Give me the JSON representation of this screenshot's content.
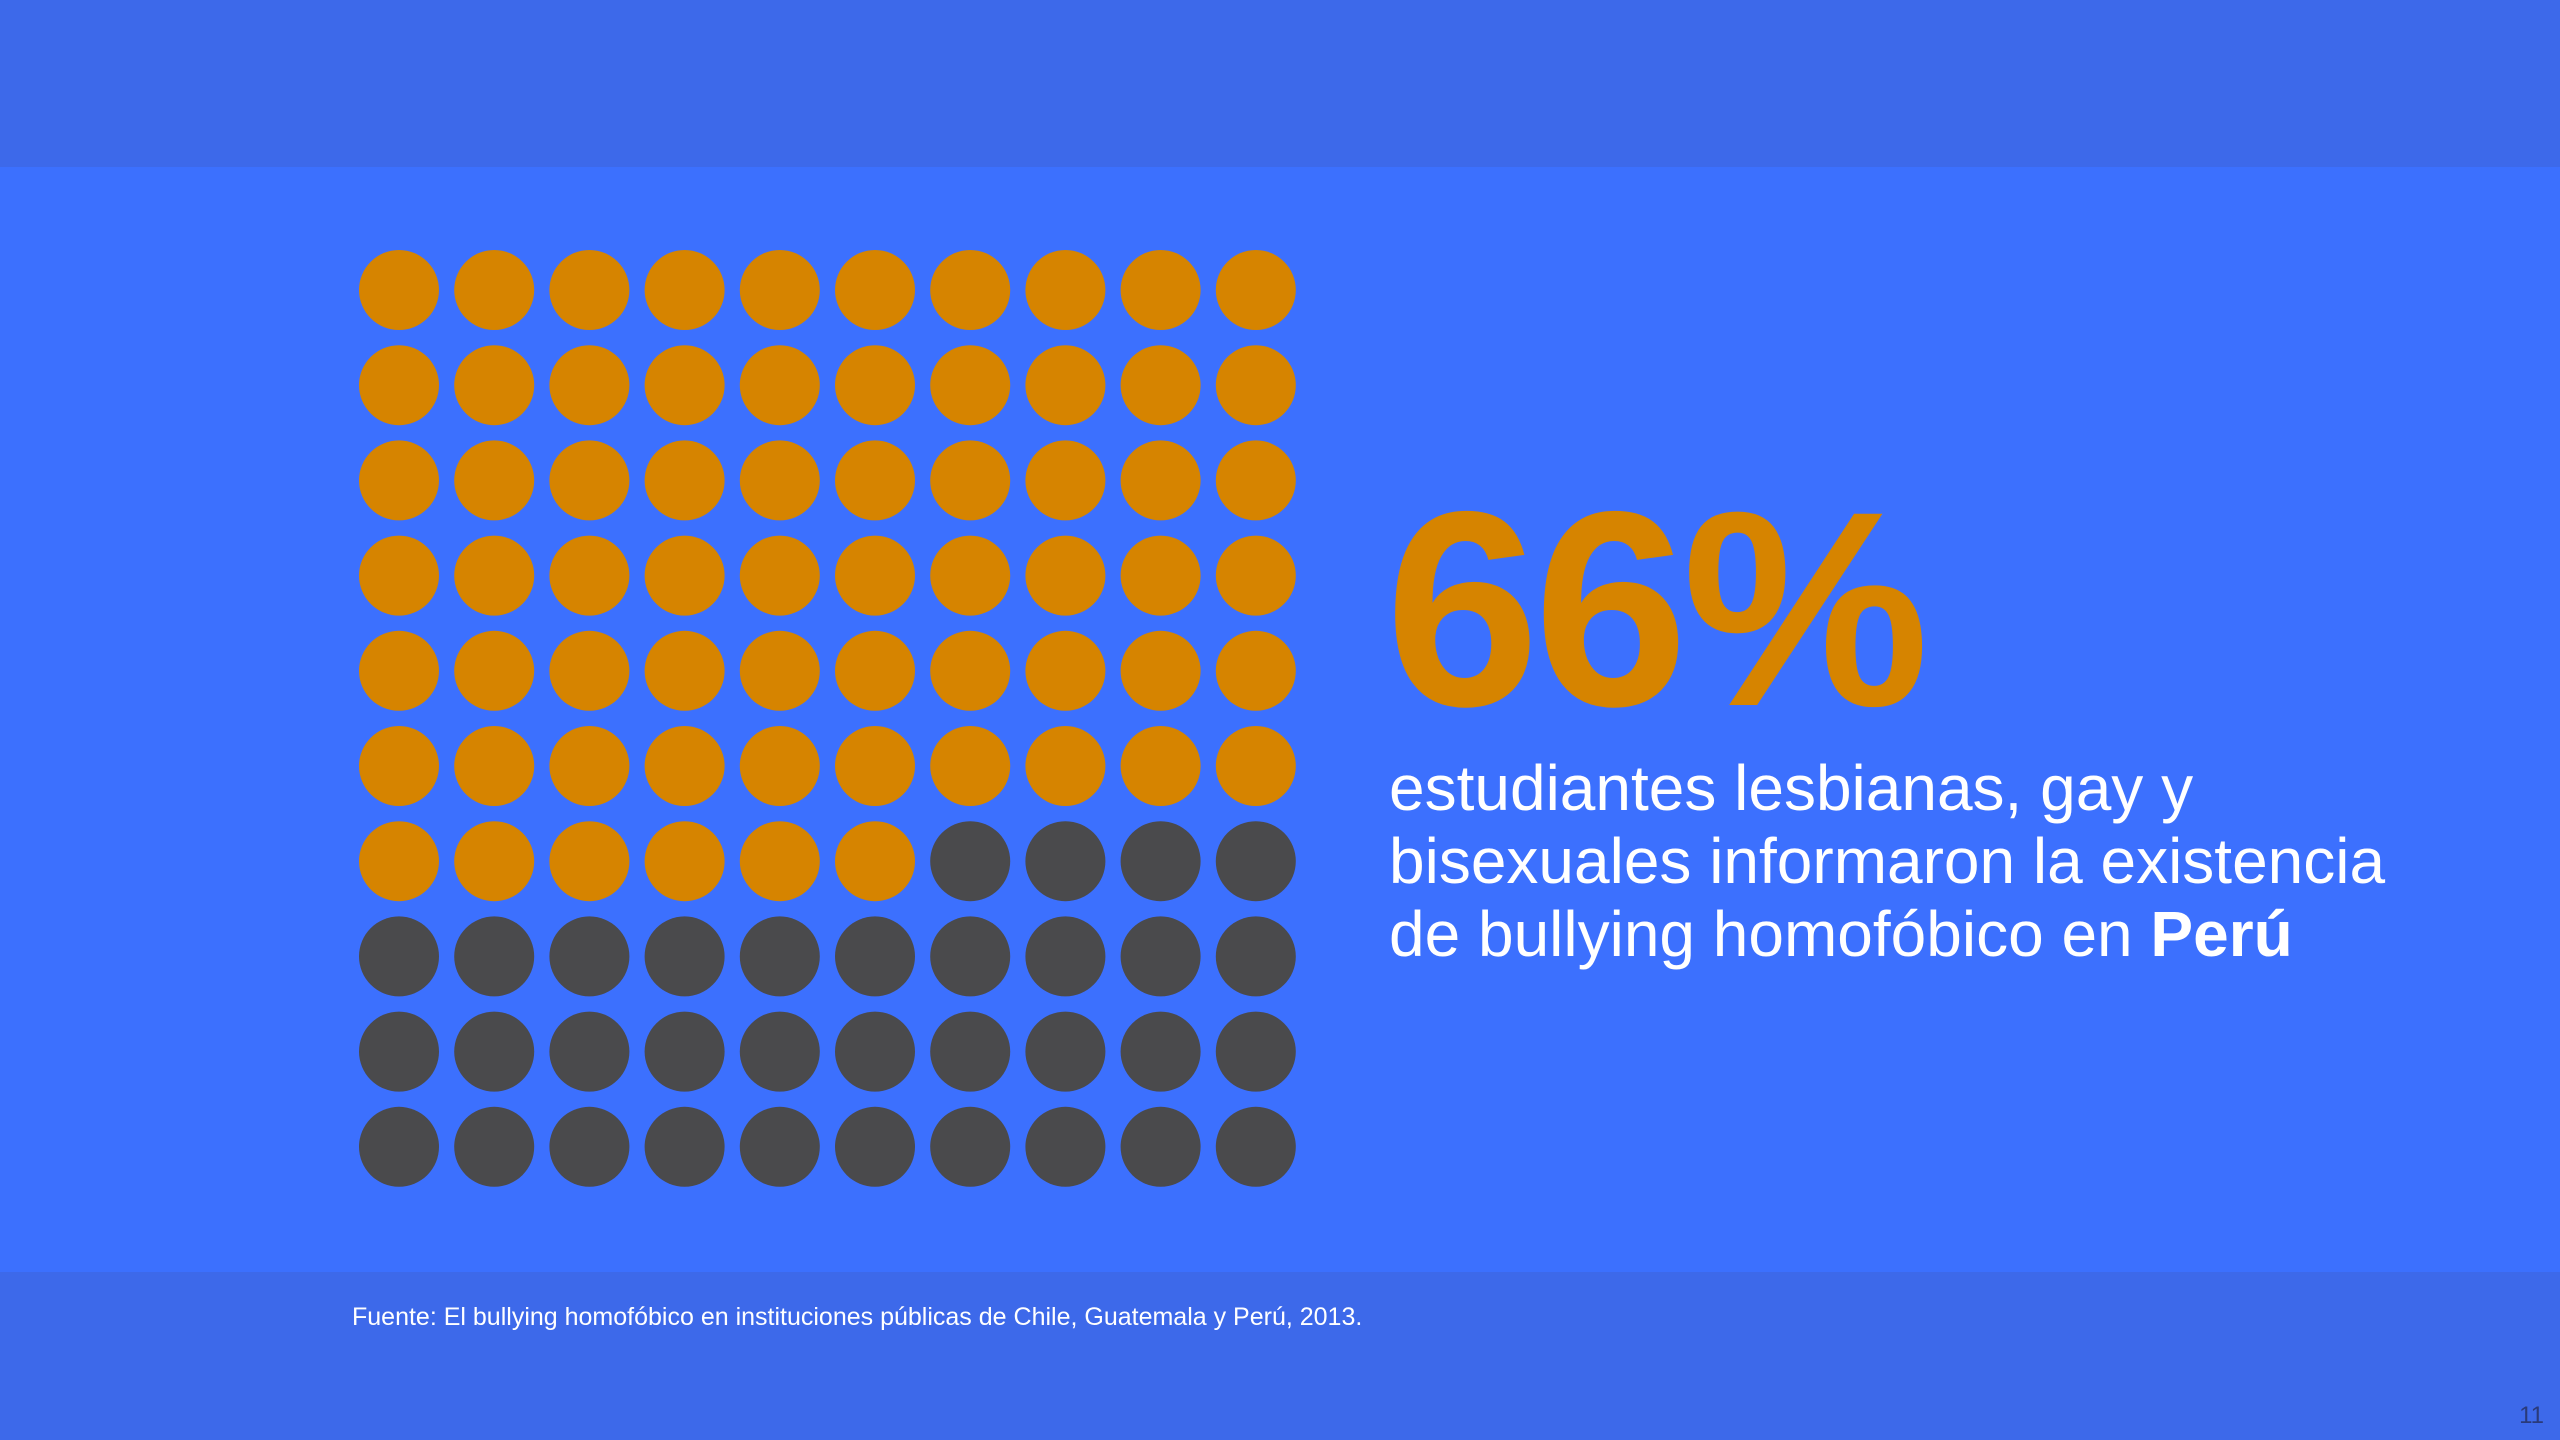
{
  "colors": {
    "background": "#3c70fe",
    "band": "#3d69ea",
    "highlight_dot": "#d68400",
    "rest_dot": "#4a4a4c",
    "percent_text": "#d68400",
    "text": "#ffffff"
  },
  "chart_data": {
    "type": "waffle",
    "rows": 10,
    "columns": 10,
    "total": 100,
    "highlighted": 66,
    "highlight_label": "66%"
  },
  "description": {
    "lines": [
      "estudiantes lesbianas, gay y",
      "bisexuales informaron la existencia",
      "de bullying homofóbico en "
    ],
    "bold_word": "Perú"
  },
  "source": "Fuente: El bullying homofóbico en instituciones públicas de Chile, Guatemala y Perú, 2013.",
  "page_number": "11"
}
